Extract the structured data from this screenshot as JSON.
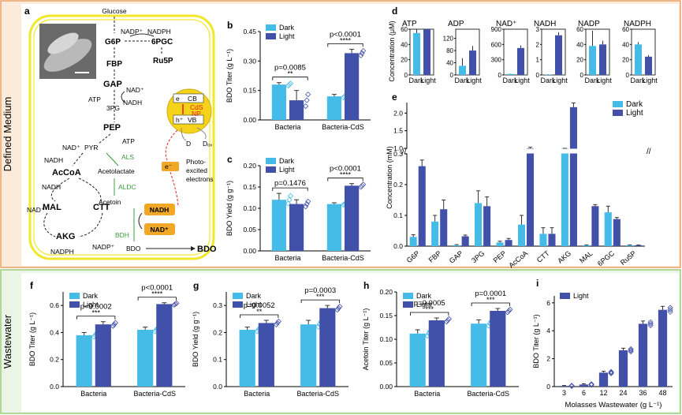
{
  "sections": {
    "defined": "Defined Medium",
    "wastewater": "Wastewater"
  },
  "colors": {
    "dark": "#45BCE8",
    "light": "#4150A8",
    "pathway_frame": "#F2E82B",
    "section_bg": "#FCEBDA",
    "section_border": "#E8A063",
    "waste_bg": "#EBF5E6",
    "waste_border": "#9ACB7C",
    "enzyme_green": "#3C9B3C",
    "nadh_box": "#F0A826",
    "red_arrow": "#E02020"
  },
  "legend": {
    "dark": "Dark",
    "light": "Light"
  },
  "panel_letters": {
    "a": "a",
    "b": "b",
    "c": "c",
    "d": "d",
    "e": "e",
    "f": "f",
    "g": "g",
    "h": "h",
    "i": "i"
  },
  "pathway": {
    "glucose": "Glucose",
    "nadp_in": "NADP⁺",
    "nadph_out": "NADPH",
    "g6p": "G6P",
    "pgc": "6PGC",
    "ru5p": "Ru5P",
    "fbp": "FBP",
    "gap": "GAP",
    "nad1": "NAD⁺",
    "atp1": "ATP",
    "nadh1": "NADH",
    "pg3": "3PG",
    "pep": "PEP",
    "atp2": "ATP",
    "nad2": "NAD⁺",
    "pyr": "PYR",
    "als": "ALS",
    "nadh2": "NADH",
    "acoa": "AcCoA",
    "acetolactate": "Acetolactate",
    "nadh3": "NADH",
    "aldc": "ALDC",
    "nad3": "NAD⁺",
    "acetoin": "Acetoin",
    "mal": "MAL",
    "ctt": "CTT",
    "bdh": "BDH",
    "nadh_box": "NADH",
    "nad_box": "NAD⁺",
    "akg": "AKG",
    "nadp2": "NADP⁺",
    "nadph2": "NADPH",
    "bdo": "BDO",
    "bdo_out": "BDO",
    "cb": "CB",
    "vb": "VB",
    "e": "e",
    "h": "h⁺",
    "cds": "CdS",
    "np": "NP",
    "d": "D",
    "dox": "Dₒₓ",
    "e_minus": "e⁻",
    "photo": [
      "Photo-",
      "excited",
      "electrons"
    ]
  },
  "chart_data": [
    {
      "id": "b",
      "type": "bar",
      "ylabel": "BDO Titer (g L⁻¹)",
      "ylim": [
        0,
        0.45
      ],
      "yticks": [
        0.0,
        0.15,
        0.3,
        0.45
      ],
      "categories": [
        "Bacteria",
        "Bacteria-CdS"
      ],
      "series": [
        {
          "name": "Dark",
          "values": [
            0.18,
            0.12
          ],
          "err": [
            0.01,
            0.01
          ]
        },
        {
          "name": "Light",
          "values": [
            0.1,
            0.34
          ],
          "err": [
            0.05,
            0.02
          ]
        }
      ],
      "annotations": [
        {
          "p": "p=0.0085",
          "stars": "**"
        },
        {
          "p": "p<0.0001",
          "stars": "****"
        }
      ]
    },
    {
      "id": "c",
      "type": "bar",
      "ylabel": "BDO Yield (g g⁻¹)",
      "ylim": [
        0,
        0.2
      ],
      "yticks": [
        0.0,
        0.05,
        0.1,
        0.15,
        0.2
      ],
      "categories": [
        "Bacteria",
        "Bacteria-CdS"
      ],
      "series": [
        {
          "name": "Dark",
          "values": [
            0.12,
            0.11
          ],
          "err": [
            0.015,
            0.003
          ]
        },
        {
          "name": "Light",
          "values": [
            0.11,
            0.153
          ],
          "err": [
            0.01,
            0.005
          ]
        }
      ],
      "annotations": [
        {
          "p": "p=0.1476",
          "stars": ""
        },
        {
          "p": "p<0.0001",
          "stars": "****"
        }
      ]
    },
    {
      "id": "d",
      "type": "bar",
      "ylabel": "Concentration (μM)",
      "xticks": [
        "Dark",
        "Light"
      ],
      "panels": [
        {
          "title": "ATP",
          "ylim": [
            0,
            60
          ],
          "yticks": [
            0,
            20,
            40,
            60
          ],
          "values": [
            55,
            60
          ],
          "err": [
            8,
            10
          ]
        },
        {
          "title": "ADP",
          "ylim": [
            0,
            150
          ],
          "yticks": [
            0,
            40,
            80,
            120
          ],
          "values": [
            30,
            80
          ],
          "err": [
            25,
            15
          ]
        },
        {
          "title": "NAD⁺",
          "ylim": [
            0,
            900
          ],
          "yticks": [
            0,
            300,
            600,
            900
          ],
          "values": [
            20,
            530
          ],
          "err": [
            5,
            50
          ]
        },
        {
          "title": "NADH",
          "ylim": [
            0,
            3
          ],
          "yticks": [
            0,
            1,
            2,
            3
          ],
          "values": [
            0.03,
            2.6
          ],
          "err": [
            0.02,
            0.2
          ]
        },
        {
          "title": "NADP",
          "ylim": [
            0,
            60
          ],
          "yticks": [
            0,
            20,
            40,
            60
          ],
          "values": [
            38,
            40
          ],
          "err": [
            20,
            5
          ]
        },
        {
          "title": "NADPH",
          "ylim": [
            0,
            60
          ],
          "yticks": [
            0,
            20,
            40,
            60
          ],
          "values": [
            40,
            24
          ],
          "err": [
            3,
            2
          ]
        }
      ]
    },
    {
      "id": "e",
      "type": "bar",
      "ylabel": "Concentration (mM)",
      "yticks_lower": [
        0.0,
        0.1,
        0.2,
        0.3
      ],
      "yticks_upper": [
        1.0,
        1.5,
        2.0
      ],
      "categories": [
        "G6P",
        "FBP",
        "GAP",
        "3PG",
        "PEP",
        "AcCoA",
        "CTT",
        "AKG",
        "MAL",
        "6PGC",
        "Ru5P"
      ],
      "series": [
        {
          "name": "Dark",
          "values": [
            0.03,
            0.08,
            0.003,
            0.14,
            0.012,
            0.07,
            0.04,
            0.87,
            0.003,
            0.11,
            0.003
          ],
          "err": [
            0.007,
            0.02,
            0.002,
            0.04,
            0.004,
            0.03,
            0.02,
            0.02,
            0.001,
            0.02,
            0.001
          ]
        },
        {
          "name": "Light",
          "values": [
            0.26,
            0.12,
            0.032,
            0.13,
            0.02,
            1.0,
            0.04,
            2.17,
            0.13,
            0.088,
            0.003
          ],
          "err": [
            0.02,
            0.03,
            0.004,
            0.03,
            0.005,
            0.03,
            0.02,
            0.12,
            0.005,
            0.005,
            0.001
          ]
        }
      ]
    },
    {
      "id": "f",
      "type": "bar",
      "ylabel": "BDO Titer (g L⁻¹)",
      "ylim": [
        0,
        0.7
      ],
      "yticks": [
        0.0,
        0.2,
        0.4,
        0.6
      ],
      "categories": [
        "Bacteria",
        "Bacteria-CdS"
      ],
      "series": [
        {
          "name": "Dark",
          "values": [
            0.38,
            0.42
          ],
          "err": [
            0.02,
            0.02
          ]
        },
        {
          "name": "Light",
          "values": [
            0.46,
            0.61
          ],
          "err": [
            0.02,
            0.01
          ]
        }
      ],
      "annotations": [
        {
          "p": "p=0.0002",
          "stars": "***"
        },
        {
          "p": "p<0.0001",
          "stars": "****"
        }
      ]
    },
    {
      "id": "g",
      "type": "bar",
      "ylabel": "BDO Yield (g g⁻¹)",
      "ylim": [
        0,
        0.35
      ],
      "yticks": [
        0.0,
        0.1,
        0.2,
        0.3
      ],
      "categories": [
        "Bacteria",
        "Bacteria-CdS"
      ],
      "series": [
        {
          "name": "Dark",
          "values": [
            0.21,
            0.23
          ],
          "err": [
            0.01,
            0.015
          ]
        },
        {
          "name": "Light",
          "values": [
            0.235,
            0.29
          ],
          "err": [
            0.01,
            0.01
          ]
        }
      ],
      "annotations": [
        {
          "p": "p=0.0052",
          "stars": "**"
        },
        {
          "p": "p=0.0003",
          "stars": "***"
        }
      ]
    },
    {
      "id": "h",
      "type": "bar",
      "ylabel": "Acetoin Titer (g L⁻¹)",
      "ylim": [
        0,
        0.2
      ],
      "yticks": [
        0.0,
        0.05,
        0.1,
        0.15,
        0.2
      ],
      "categories": [
        "Bacteria",
        "Bacteria-CdS"
      ],
      "series": [
        {
          "name": "Dark",
          "values": [
            0.112,
            0.133
          ],
          "err": [
            0.008,
            0.008
          ]
        },
        {
          "name": "Light",
          "values": [
            0.14,
            0.16
          ],
          "err": [
            0.005,
            0.005
          ]
        }
      ],
      "annotations": [
        {
          "p": "p=0.0005",
          "stars": "***"
        },
        {
          "p": "p=0.0001",
          "stars": "***"
        }
      ]
    },
    {
      "id": "i",
      "type": "bar",
      "ylabel": "BDO Titer (g L⁻¹)",
      "xlabel": "Molasses Wastewater (g L⁻¹)",
      "ylim": [
        0,
        6.5
      ],
      "yticks": [
        0,
        2,
        4,
        6
      ],
      "categories": [
        "3",
        "6",
        "12",
        "24",
        "36",
        "48"
      ],
      "series": [
        {
          "name": "Light",
          "values": [
            0.05,
            0.15,
            1.0,
            2.6,
            4.5,
            5.5
          ],
          "err": [
            0.03,
            0.05,
            0.1,
            0.15,
            0.2,
            0.25
          ]
        }
      ]
    }
  ]
}
